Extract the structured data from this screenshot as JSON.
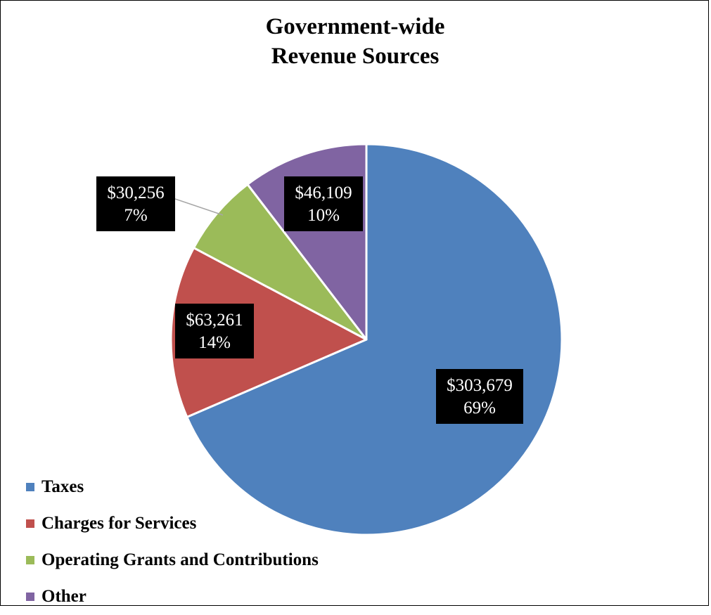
{
  "chart_data": {
    "type": "pie",
    "title_line1": "Government-wide",
    "title_line2": "Revenue Sources",
    "slices": [
      {
        "name": "Taxes",
        "value": 303679,
        "value_label": "$303,679",
        "percent_label": "69%",
        "color": "#4F81BD"
      },
      {
        "name": "Charges for Services",
        "value": 63261,
        "value_label": "$63,261",
        "percent_label": "14%",
        "color": "#C0504D"
      },
      {
        "name": "Operating Grants and Contributions",
        "value": 30256,
        "value_label": "$30,256",
        "percent_label": "7%",
        "color": "#9BBB59"
      },
      {
        "name": "Other",
        "value": 46109,
        "value_label": "$46,109",
        "percent_label": "10%",
        "color": "#8064A2"
      }
    ],
    "legend_position": "bottom-left",
    "data_label_style": "white text on black box"
  }
}
